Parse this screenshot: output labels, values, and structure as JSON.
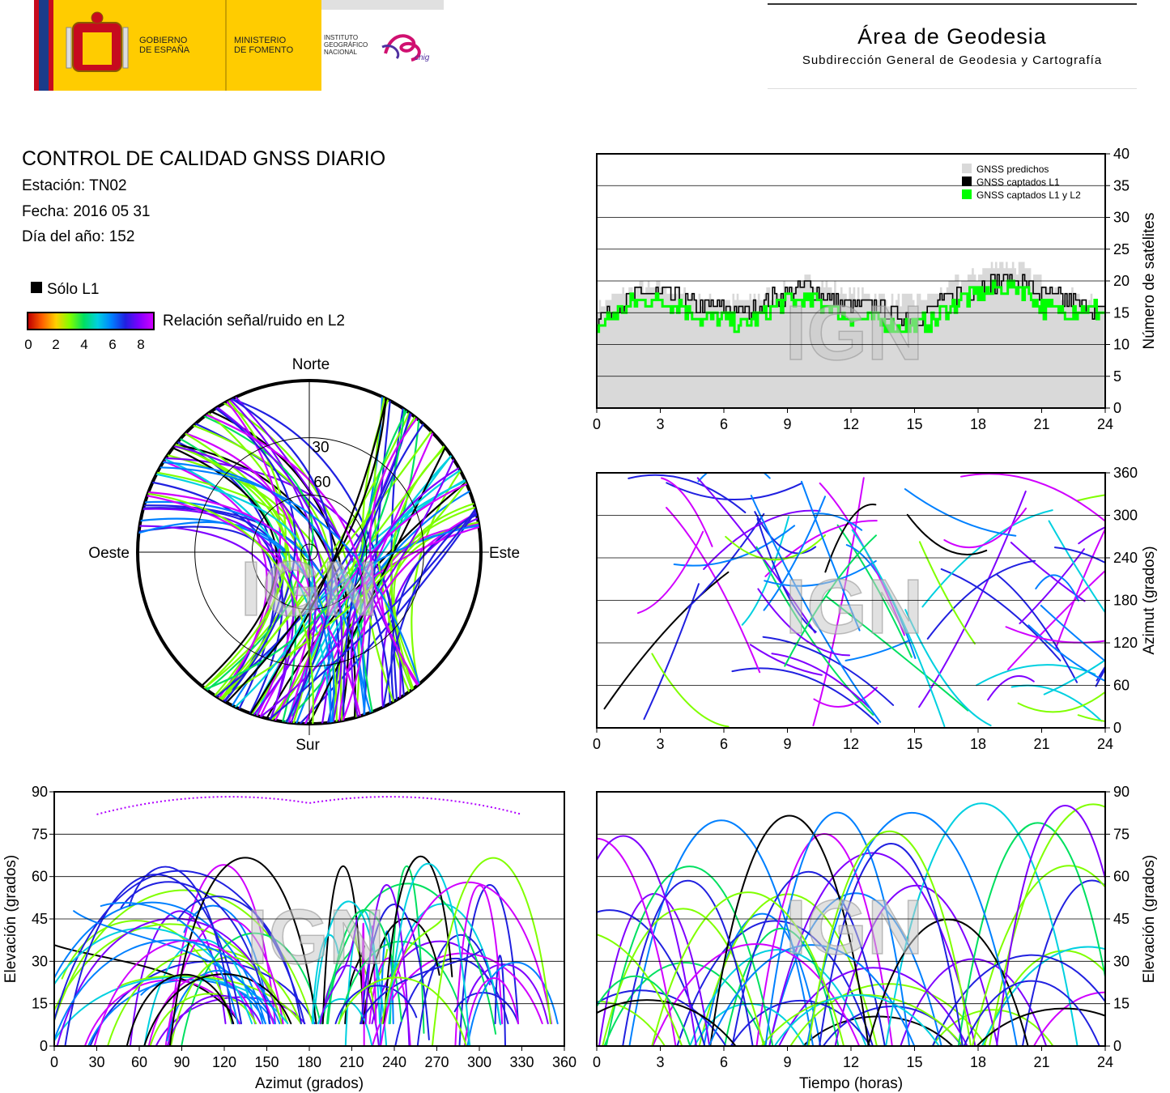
{
  "header": {
    "gov_text": [
      "GOBIERNO",
      "DE ESPAÑA"
    ],
    "ministry_text": [
      "MINISTERIO",
      "DE FOMENTO"
    ],
    "institute_text": [
      "INSTITUTO",
      "GEOGRÁFICO",
      "NACIONAL"
    ],
    "cnig_text": "cnig",
    "org_title": "Área de Geodesia",
    "org_subtitle": "Subdirección General de Geodesia y Cartografía"
  },
  "info": {
    "title": "CONTROL DE CALIDAD GNSS DIARIO",
    "station": "Estación: TN02",
    "date": "Fecha: 2016 05 31",
    "doy": "Día del año: 152"
  },
  "legend": {
    "l1_only": "Sólo L1",
    "snr_label": "Relación señal/ruido en L2",
    "snr_ticks": [
      "0",
      "2",
      "4",
      "6",
      "8"
    ],
    "colors": {
      "l1_only": "#000000",
      "predicted": "#d9d9d9",
      "captured_l1_l2": "#00ff00",
      "snr_scale": [
        "#c00000",
        "#ff6000",
        "#ffd000",
        "#80ff00",
        "#00e060",
        "#00d0e0",
        "#0080ff",
        "#2020e0",
        "#8000ff",
        "#d000ff"
      ]
    }
  },
  "watermark": "IGN",
  "chart_data": [
    {
      "id": "satellite_count",
      "type": "area",
      "x_ticks": [
        "0",
        "3",
        "6",
        "9",
        "12",
        "15",
        "18",
        "21",
        "24"
      ],
      "y_ticks": [
        "0",
        "5",
        "10",
        "15",
        "20",
        "25",
        "30",
        "35",
        "40"
      ],
      "ylabel": "Número de satélites",
      "xlim": [
        0,
        24
      ],
      "ylim": [
        0,
        40
      ],
      "grid": true,
      "legend_position": "top-right",
      "series_labels": [
        "GNSS predichos",
        "GNSS captados L1",
        "GNSS captados L1 y L2"
      ],
      "x": [
        0,
        1,
        2,
        3,
        4,
        5,
        6,
        7,
        8,
        9,
        10,
        11,
        12,
        13,
        14,
        15,
        16,
        17,
        18,
        19,
        20,
        21,
        22,
        23,
        24
      ],
      "series": [
        {
          "name": "GNSS predichos",
          "values": [
            16,
            18,
            19,
            19,
            18,
            17,
            17,
            17,
            18,
            19,
            20,
            19,
            18,
            18,
            17,
            17,
            18,
            20,
            21,
            23,
            22,
            20,
            18,
            17,
            16
          ]
        },
        {
          "name": "GNSS captados L1",
          "values": [
            14,
            16,
            18,
            18,
            17,
            16,
            16,
            15,
            17,
            18,
            19,
            17,
            16,
            16,
            15,
            14,
            16,
            18,
            19,
            20,
            20,
            18,
            17,
            16,
            15
          ]
        },
        {
          "name": "GNSS captados L1 y L2",
          "values": [
            13,
            15,
            17,
            17,
            16,
            14,
            14,
            13,
            15,
            17,
            17,
            16,
            14,
            14,
            13,
            13,
            14,
            17,
            18,
            19,
            19,
            16,
            15,
            16,
            15
          ]
        }
      ]
    },
    {
      "id": "skyplot",
      "type": "scatter",
      "labels": {
        "north": "Norte",
        "south": "Sur",
        "west": "Oeste",
        "east": "Este"
      },
      "elevation_rings": [
        "30",
        "60"
      ]
    },
    {
      "id": "azimuth_vs_time",
      "type": "scatter",
      "ylabel": "Azimut (grados)",
      "x_ticks": [
        "0",
        "3",
        "6",
        "9",
        "12",
        "15",
        "18",
        "21",
        "24"
      ],
      "y_ticks": [
        "0",
        "60",
        "120",
        "180",
        "240",
        "300",
        "360"
      ],
      "xlim": [
        0,
        24
      ],
      "ylim": [
        0,
        360
      ],
      "grid": true
    },
    {
      "id": "elevation_vs_azimuth",
      "type": "scatter",
      "xlabel": "Azimut (grados)",
      "ylabel": "Elevación (grados)",
      "x_ticks": [
        "0",
        "30",
        "60",
        "90",
        "120",
        "150",
        "180",
        "210",
        "240",
        "270",
        "300",
        "330",
        "360"
      ],
      "y_ticks": [
        "0",
        "15",
        "30",
        "45",
        "60",
        "75",
        "90"
      ],
      "xlim": [
        0,
        360
      ],
      "ylim": [
        0,
        90
      ],
      "grid": true
    },
    {
      "id": "elevation_vs_time",
      "type": "scatter",
      "xlabel": "Tiempo (horas)",
      "ylabel": "Elevación (grados)",
      "x_ticks": [
        "0",
        "3",
        "6",
        "9",
        "12",
        "15",
        "18",
        "21",
        "24"
      ],
      "y_ticks": [
        "0",
        "15",
        "30",
        "45",
        "60",
        "75",
        "90"
      ],
      "xlim": [
        0,
        24
      ],
      "ylim": [
        0,
        90
      ],
      "grid": true
    }
  ]
}
